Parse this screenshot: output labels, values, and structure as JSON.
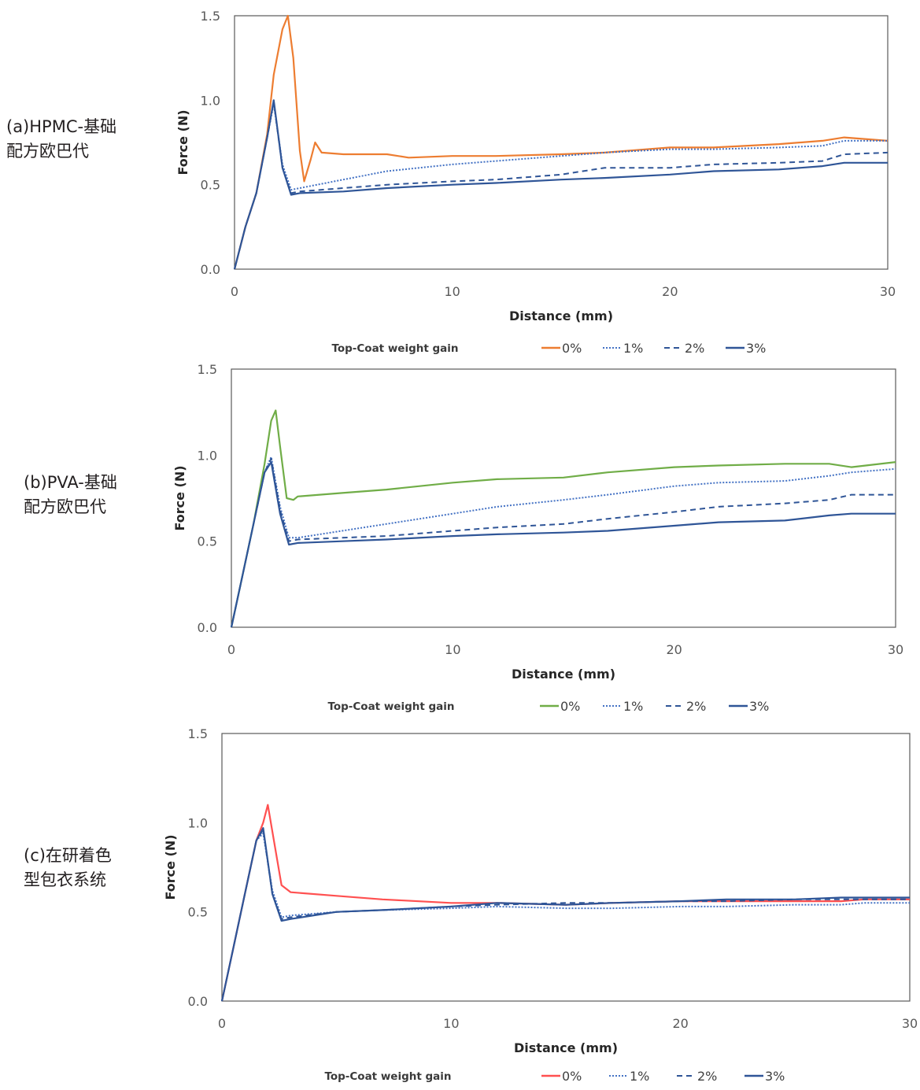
{
  "panels": [
    {
      "label": "(a)HPMC-基础\n配方欧巴代"
    },
    {
      "label": "(b)PVA-基础\n配方欧巴代"
    },
    {
      "label": "(c)在研着色\n型包衣系统"
    }
  ],
  "chart_data": [
    {
      "type": "line",
      "xlabel": "Distance (mm)",
      "ylabel": "Force (N)",
      "xlim": [
        0,
        30
      ],
      "ylim": [
        0,
        1.5
      ],
      "xticks": [
        "0",
        "10",
        "20",
        "30"
      ],
      "yticks": [
        "0.0",
        "0.5",
        "1.0",
        "1.5"
      ],
      "grid": false,
      "legend_position": "bottom",
      "legend_title": "Top-Coat weight gain",
      "series": [
        {
          "name": "0%",
          "color": "#ed7d31",
          "style": "solid",
          "x": [
            0,
            0.5,
            1.0,
            1.5,
            1.8,
            2.2,
            2.45,
            2.7,
            3.0,
            3.2,
            3.5,
            3.7,
            4.0,
            5,
            7,
            8,
            10,
            12,
            15,
            17,
            20,
            22,
            25,
            27,
            28,
            30
          ],
          "y": [
            0,
            0.25,
            0.45,
            0.8,
            1.15,
            1.42,
            1.5,
            1.25,
            0.7,
            0.52,
            0.65,
            0.75,
            0.69,
            0.68,
            0.68,
            0.66,
            0.67,
            0.67,
            0.68,
            0.69,
            0.72,
            0.72,
            0.74,
            0.76,
            0.78,
            0.76
          ]
        },
        {
          "name": "1%",
          "color": "#4472c4",
          "style": "dotted",
          "x": [
            0,
            0.5,
            1.0,
            1.5,
            1.8,
            2.2,
            2.6,
            3.0,
            5,
            7,
            10,
            12,
            15,
            17,
            20,
            22,
            25,
            27,
            28,
            30
          ],
          "y": [
            0,
            0.25,
            0.45,
            0.78,
            0.98,
            0.62,
            0.47,
            0.48,
            0.53,
            0.58,
            0.62,
            0.64,
            0.67,
            0.69,
            0.71,
            0.71,
            0.72,
            0.73,
            0.76,
            0.76
          ]
        },
        {
          "name": "2%",
          "color": "#2f5597",
          "style": "dashed",
          "x": [
            0,
            0.5,
            1.0,
            1.5,
            1.8,
            2.2,
            2.6,
            3.0,
            5,
            7,
            10,
            12,
            15,
            17,
            20,
            22,
            25,
            27,
            28,
            30
          ],
          "y": [
            0,
            0.25,
            0.45,
            0.78,
            0.99,
            0.6,
            0.45,
            0.46,
            0.48,
            0.5,
            0.52,
            0.53,
            0.56,
            0.6,
            0.6,
            0.62,
            0.63,
            0.64,
            0.68,
            0.69
          ]
        },
        {
          "name": "3%",
          "color": "#2f5597",
          "style": "solid",
          "x": [
            0,
            0.5,
            1.0,
            1.5,
            1.8,
            2.2,
            2.6,
            3.0,
            5,
            7,
            10,
            12,
            15,
            17,
            20,
            22,
            25,
            27,
            28,
            30
          ],
          "y": [
            0,
            0.25,
            0.45,
            0.78,
            1.0,
            0.6,
            0.44,
            0.45,
            0.46,
            0.48,
            0.5,
            0.51,
            0.53,
            0.54,
            0.56,
            0.58,
            0.59,
            0.61,
            0.63,
            0.63
          ]
        }
      ]
    },
    {
      "type": "line",
      "xlabel": "Distance (mm)",
      "ylabel": "Force (N)",
      "xlim": [
        0,
        30
      ],
      "ylim": [
        0,
        1.5
      ],
      "xticks": [
        "0",
        "10",
        "20",
        "30"
      ],
      "yticks": [
        "0.0",
        "0.5",
        "1.0",
        "1.5"
      ],
      "grid": false,
      "legend_position": "bottom",
      "legend_title": "Top-Coat weight gain",
      "series": [
        {
          "name": "0%",
          "color": "#70ad47",
          "style": "solid",
          "x": [
            0,
            0.5,
            1.0,
            1.5,
            1.8,
            2.0,
            2.2,
            2.5,
            2.8,
            3.0,
            5,
            7,
            10,
            12,
            15,
            17,
            20,
            22,
            25,
            27,
            28,
            30
          ],
          "y": [
            0,
            0.3,
            0.6,
            0.95,
            1.2,
            1.26,
            1.05,
            0.75,
            0.74,
            0.76,
            0.78,
            0.8,
            0.84,
            0.86,
            0.87,
            0.9,
            0.93,
            0.94,
            0.95,
            0.95,
            0.93,
            0.96
          ]
        },
        {
          "name": "1%",
          "color": "#4472c4",
          "style": "dotted",
          "x": [
            0,
            0.5,
            1.0,
            1.5,
            1.8,
            2.2,
            2.6,
            3.0,
            5,
            7,
            10,
            12,
            15,
            17,
            20,
            22,
            25,
            27,
            28,
            30
          ],
          "y": [
            0,
            0.3,
            0.6,
            0.9,
            0.99,
            0.7,
            0.52,
            0.52,
            0.56,
            0.6,
            0.66,
            0.7,
            0.74,
            0.77,
            0.82,
            0.84,
            0.85,
            0.88,
            0.9,
            0.92
          ]
        },
        {
          "name": "2%",
          "color": "#2f5597",
          "style": "dashed",
          "x": [
            0,
            0.5,
            1.0,
            1.5,
            1.8,
            2.2,
            2.6,
            3.0,
            5,
            7,
            10,
            12,
            15,
            17,
            20,
            22,
            25,
            27,
            28,
            30
          ],
          "y": [
            0,
            0.3,
            0.6,
            0.9,
            0.98,
            0.68,
            0.5,
            0.51,
            0.52,
            0.53,
            0.56,
            0.58,
            0.6,
            0.63,
            0.67,
            0.7,
            0.72,
            0.74,
            0.77,
            0.77
          ]
        },
        {
          "name": "3%",
          "color": "#2f5597",
          "style": "solid",
          "x": [
            0,
            0.5,
            1.0,
            1.5,
            1.8,
            2.2,
            2.6,
            3.0,
            5,
            7,
            10,
            12,
            15,
            17,
            20,
            22,
            25,
            27,
            28,
            30
          ],
          "y": [
            0,
            0.3,
            0.6,
            0.9,
            0.96,
            0.66,
            0.48,
            0.49,
            0.5,
            0.51,
            0.53,
            0.54,
            0.55,
            0.56,
            0.59,
            0.61,
            0.62,
            0.65,
            0.66,
            0.66
          ]
        }
      ]
    },
    {
      "type": "line",
      "xlabel": "Distance (mm)",
      "ylabel": "Force (N)",
      "xlim": [
        0,
        30
      ],
      "ylim": [
        0,
        1.5
      ],
      "xticks": [
        "0",
        "10",
        "20",
        "30"
      ],
      "yticks": [
        "0.0",
        "0.5",
        "1.0",
        "1.5"
      ],
      "grid": false,
      "legend_position": "bottom",
      "legend_title": "Top-Coat weight gain",
      "series": [
        {
          "name": "0%",
          "color": "#ff5050",
          "style": "solid",
          "x": [
            0,
            0.5,
            1.0,
            1.5,
            1.8,
            2.0,
            2.2,
            2.6,
            3.0,
            5,
            7,
            10,
            12,
            15,
            17,
            20,
            22,
            25,
            27,
            28,
            30
          ],
          "y": [
            0,
            0.3,
            0.6,
            0.9,
            1.0,
            1.1,
            0.95,
            0.65,
            0.61,
            0.59,
            0.57,
            0.55,
            0.55,
            0.54,
            0.55,
            0.56,
            0.56,
            0.56,
            0.56,
            0.57,
            0.57
          ]
        },
        {
          "name": "1%",
          "color": "#4472c4",
          "style": "dotted",
          "x": [
            0,
            0.5,
            1.0,
            1.5,
            1.8,
            2.2,
            2.6,
            3.0,
            5,
            7,
            10,
            12,
            15,
            17,
            20,
            22,
            25,
            27,
            28,
            30
          ],
          "y": [
            0,
            0.3,
            0.6,
            0.9,
            0.94,
            0.62,
            0.47,
            0.48,
            0.5,
            0.51,
            0.52,
            0.53,
            0.52,
            0.52,
            0.53,
            0.53,
            0.54,
            0.54,
            0.55,
            0.55
          ]
        },
        {
          "name": "2%",
          "color": "#2f5597",
          "style": "dashed",
          "x": [
            0,
            0.5,
            1.0,
            1.5,
            1.8,
            2.2,
            2.6,
            3.0,
            5,
            7,
            10,
            12,
            15,
            17,
            20,
            22,
            25,
            27,
            28,
            30
          ],
          "y": [
            0,
            0.3,
            0.6,
            0.9,
            0.96,
            0.6,
            0.46,
            0.47,
            0.5,
            0.51,
            0.53,
            0.54,
            0.55,
            0.55,
            0.56,
            0.56,
            0.57,
            0.57,
            0.57,
            0.57
          ]
        },
        {
          "name": "3%",
          "color": "#2f5597",
          "style": "solid",
          "x": [
            0,
            0.5,
            1.0,
            1.5,
            1.8,
            2.2,
            2.6,
            3.0,
            5,
            7,
            10,
            12,
            15,
            17,
            20,
            22,
            25,
            27,
            28,
            30
          ],
          "y": [
            0,
            0.3,
            0.6,
            0.9,
            0.97,
            0.6,
            0.45,
            0.46,
            0.5,
            0.51,
            0.53,
            0.55,
            0.54,
            0.55,
            0.56,
            0.57,
            0.57,
            0.58,
            0.58,
            0.58
          ]
        }
      ]
    }
  ]
}
